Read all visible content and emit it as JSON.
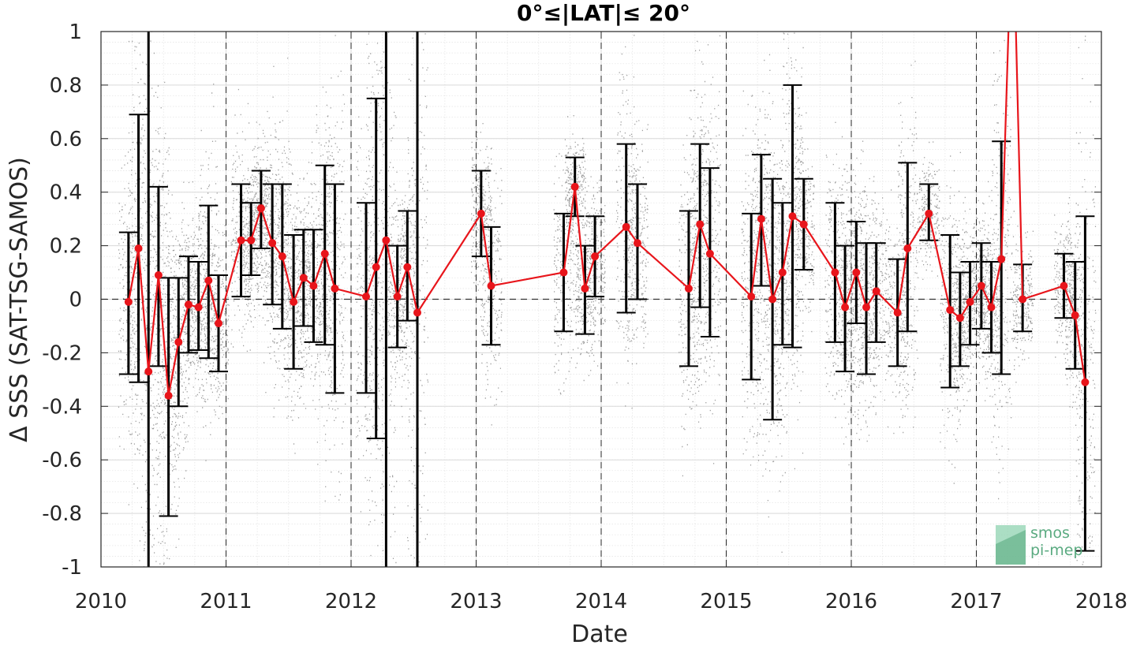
{
  "chart_data": {
    "type": "line",
    "title": "0°≤|LAT|≤ 20°",
    "xlabel": "Date",
    "ylabel": "Δ SSS (SAT-TSG-SAMOS)",
    "xlim": [
      2010,
      2018
    ],
    "ylim": [
      -1,
      1
    ],
    "x_ticks": [
      "2010",
      "2011",
      "2012",
      "2013",
      "2014",
      "2015",
      "2016",
      "2017",
      "2018"
    ],
    "y_ticks": [
      "-1",
      "-0.8",
      "-0.6",
      "-0.4",
      "-0.2",
      "0",
      "0.2",
      "0.4",
      "0.6",
      "0.8",
      "1"
    ],
    "grid": true,
    "reference_line_y": 0,
    "year_boundaries_dashed": true,
    "series": [
      {
        "color": "#e8151b",
        "marker": "circle",
        "errorbar_color": "#000000",
        "points": [
          {
            "x": 2010.22,
            "y": -0.01,
            "lo": -0.28,
            "hi": 0.25
          },
          {
            "x": 2010.3,
            "y": 0.19,
            "lo": -0.31,
            "hi": 0.69
          },
          {
            "x": 2010.38,
            "y": -0.27,
            "lo": -1.05,
            "hi": 1.05
          },
          {
            "x": 2010.46,
            "y": 0.09,
            "lo": -0.25,
            "hi": 0.42
          },
          {
            "x": 2010.54,
            "y": -0.36,
            "lo": -0.81,
            "hi": 0.08
          },
          {
            "x": 2010.62,
            "y": -0.16,
            "lo": -0.4,
            "hi": 0.08
          },
          {
            "x": 2010.7,
            "y": -0.02,
            "lo": -0.2,
            "hi": 0.16
          },
          {
            "x": 2010.78,
            "y": -0.03,
            "lo": -0.19,
            "hi": 0.14
          },
          {
            "x": 2010.86,
            "y": 0.07,
            "lo": -0.22,
            "hi": 0.35
          },
          {
            "x": 2010.94,
            "y": -0.09,
            "lo": -0.27,
            "hi": 0.09
          },
          {
            "x": 2011.12,
            "y": 0.22,
            "lo": 0.01,
            "hi": 0.43
          },
          {
            "x": 2011.2,
            "y": 0.22,
            "lo": 0.09,
            "hi": 0.36
          },
          {
            "x": 2011.28,
            "y": 0.34,
            "lo": 0.19,
            "hi": 0.48
          },
          {
            "x": 2011.37,
            "y": 0.21,
            "lo": -0.02,
            "hi": 0.43
          },
          {
            "x": 2011.45,
            "y": 0.16,
            "lo": -0.11,
            "hi": 0.43
          },
          {
            "x": 2011.54,
            "y": -0.01,
            "lo": -0.26,
            "hi": 0.24
          },
          {
            "x": 2011.62,
            "y": 0.08,
            "lo": -0.1,
            "hi": 0.26
          },
          {
            "x": 2011.7,
            "y": 0.05,
            "lo": -0.16,
            "hi": 0.26
          },
          {
            "x": 2011.79,
            "y": 0.17,
            "lo": -0.17,
            "hi": 0.5
          },
          {
            "x": 2011.87,
            "y": 0.04,
            "lo": -0.35,
            "hi": 0.43
          },
          {
            "x": 2012.12,
            "y": 0.01,
            "lo": -0.35,
            "hi": 0.36
          },
          {
            "x": 2012.2,
            "y": 0.12,
            "lo": -0.52,
            "hi": 0.75
          },
          {
            "x": 2012.28,
            "y": 0.22,
            "lo": -1.05,
            "hi": 1.05
          },
          {
            "x": 2012.37,
            "y": 0.01,
            "lo": -0.18,
            "hi": 0.2
          },
          {
            "x": 2012.45,
            "y": 0.12,
            "lo": -0.08,
            "hi": 0.33
          },
          {
            "x": 2012.53,
            "y": -0.05,
            "lo": -1.05,
            "hi": 1.05
          },
          {
            "x": 2013.04,
            "y": 0.32,
            "lo": 0.16,
            "hi": 0.48
          },
          {
            "x": 2013.12,
            "y": 0.05,
            "lo": -0.17,
            "hi": 0.27
          },
          {
            "x": 2013.7,
            "y": 0.1,
            "lo": -0.12,
            "hi": 0.32
          },
          {
            "x": 2013.79,
            "y": 0.42,
            "lo": 0.31,
            "hi": 0.53
          },
          {
            "x": 2013.87,
            "y": 0.04,
            "lo": -0.13,
            "hi": 0.2
          },
          {
            "x": 2013.95,
            "y": 0.16,
            "lo": 0.01,
            "hi": 0.31
          },
          {
            "x": 2014.2,
            "y": 0.27,
            "lo": -0.05,
            "hi": 0.58
          },
          {
            "x": 2014.29,
            "y": 0.21,
            "lo": 0.0,
            "hi": 0.43
          },
          {
            "x": 2014.7,
            "y": 0.04,
            "lo": -0.25,
            "hi": 0.33
          },
          {
            "x": 2014.79,
            "y": 0.28,
            "lo": -0.03,
            "hi": 0.58
          },
          {
            "x": 2014.87,
            "y": 0.17,
            "lo": -0.14,
            "hi": 0.49
          },
          {
            "x": 2015.2,
            "y": 0.01,
            "lo": -0.3,
            "hi": 0.32
          },
          {
            "x": 2015.28,
            "y": 0.3,
            "lo": 0.05,
            "hi": 0.54
          },
          {
            "x": 2015.37,
            "y": 0.0,
            "lo": -0.45,
            "hi": 0.45
          },
          {
            "x": 2015.45,
            "y": 0.1,
            "lo": -0.17,
            "hi": 0.36
          },
          {
            "x": 2015.53,
            "y": 0.31,
            "lo": -0.18,
            "hi": 0.8
          },
          {
            "x": 2015.62,
            "y": 0.28,
            "lo": 0.11,
            "hi": 0.45
          },
          {
            "x": 2015.87,
            "y": 0.1,
            "lo": -0.16,
            "hi": 0.36
          },
          {
            "x": 2015.95,
            "y": -0.03,
            "lo": -0.27,
            "hi": 0.2
          },
          {
            "x": 2016.04,
            "y": 0.1,
            "lo": -0.09,
            "hi": 0.29
          },
          {
            "x": 2016.12,
            "y": -0.03,
            "lo": -0.28,
            "hi": 0.21
          },
          {
            "x": 2016.2,
            "y": 0.03,
            "lo": -0.16,
            "hi": 0.21
          },
          {
            "x": 2016.37,
            "y": -0.05,
            "lo": -0.25,
            "hi": 0.15
          },
          {
            "x": 2016.45,
            "y": 0.19,
            "lo": -0.12,
            "hi": 0.51
          },
          {
            "x": 2016.62,
            "y": 0.32,
            "lo": 0.22,
            "hi": 0.43
          },
          {
            "x": 2016.79,
            "y": -0.04,
            "lo": -0.33,
            "hi": 0.24
          },
          {
            "x": 2016.87,
            "y": -0.07,
            "lo": -0.25,
            "hi": 0.1
          },
          {
            "x": 2016.95,
            "y": -0.01,
            "lo": -0.17,
            "hi": 0.14
          },
          {
            "x": 2017.04,
            "y": 0.05,
            "lo": -0.11,
            "hi": 0.21
          },
          {
            "x": 2017.12,
            "y": -0.03,
            "lo": -0.2,
            "hi": 0.14
          },
          {
            "x": 2017.2,
            "y": 0.15,
            "lo": -0.28,
            "hi": 0.59
          },
          {
            "x": 2017.29,
            "y": 1.5
          },
          {
            "x": 2017.37,
            "y": 0.0,
            "lo": -0.12,
            "hi": 0.13
          },
          {
            "x": 2017.7,
            "y": 0.05,
            "lo": -0.07,
            "hi": 0.17
          },
          {
            "x": 2017.79,
            "y": -0.06,
            "lo": -0.26,
            "hi": 0.14
          },
          {
            "x": 2017.87,
            "y": -0.31,
            "lo": -0.94,
            "hi": 0.31
          }
        ]
      }
    ],
    "scatter_background": {
      "color": "#8c8c8c",
      "description": "dense grey daily points"
    }
  },
  "logo": {
    "line1": "smos",
    "line2": "pi-mep"
  }
}
